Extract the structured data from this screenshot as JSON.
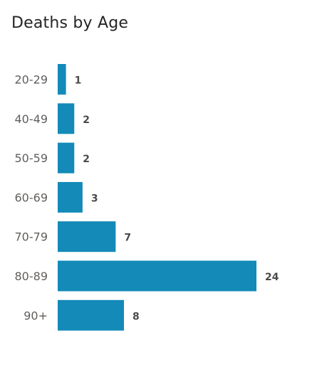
{
  "chart_data": {
    "type": "bar",
    "orientation": "horizontal",
    "title": "Deaths by Age",
    "categories": [
      "20-29",
      "40-49",
      "50-59",
      "60-69",
      "70-79",
      "80-89",
      "90+"
    ],
    "values": [
      1,
      2,
      2,
      3,
      7,
      24,
      8
    ],
    "xlabel": "",
    "ylabel": "",
    "xlim": [
      0,
      24
    ],
    "grid": false,
    "data_labels": true,
    "bar_color": "#138ab8"
  }
}
